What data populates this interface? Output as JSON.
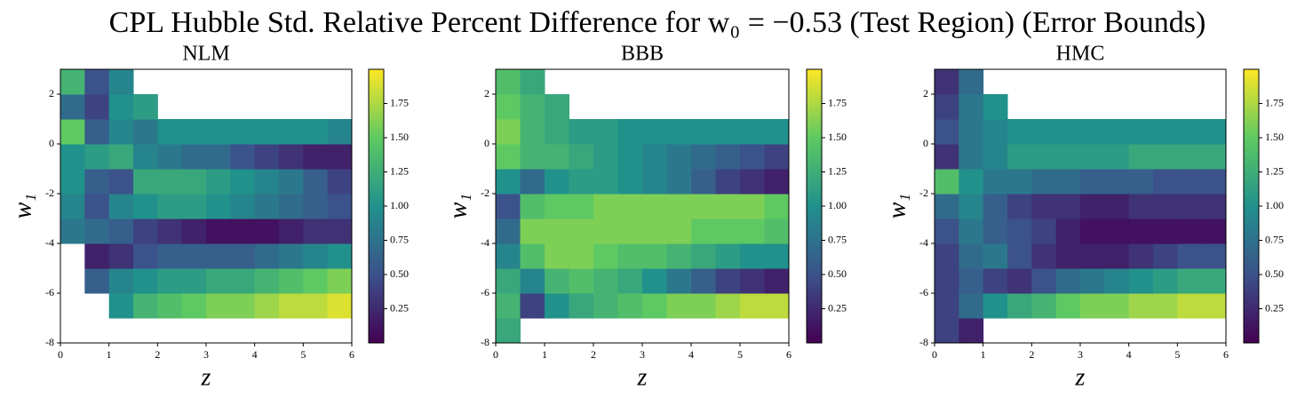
{
  "title": "CPL Hubble Std. Relative Percent Difference for w₀ = −0.53 (Test Region) (Error Bounds)",
  "chart_data": [
    {
      "type": "heatmap",
      "title": "NLM",
      "xlabel": "z",
      "ylabel": "w₁",
      "x_edges": [
        0,
        0.5,
        1,
        1.5,
        2,
        2.5,
        3,
        3.5,
        4,
        4.5,
        5,
        5.5,
        6
      ],
      "y_edges": [
        -8,
        -7,
        -6,
        -5,
        -4,
        -3,
        -2,
        -1,
        0,
        1,
        2,
        3
      ],
      "z": [
        [
          null,
          null,
          null,
          null,
          null,
          null,
          null,
          null,
          null,
          null,
          null,
          null
        ],
        [
          null,
          null,
          1.0,
          1.3,
          1.4,
          1.5,
          1.6,
          1.6,
          1.7,
          1.8,
          1.8,
          1.9
        ],
        [
          null,
          0.6,
          0.9,
          1.0,
          1.1,
          1.1,
          1.2,
          1.2,
          1.3,
          1.4,
          1.5,
          1.6
        ],
        [
          null,
          0.2,
          0.3,
          0.5,
          0.6,
          0.6,
          0.6,
          0.6,
          0.7,
          0.8,
          0.9,
          1.0
        ],
        [
          0.8,
          0.7,
          0.6,
          0.4,
          0.3,
          0.2,
          0.1,
          0.1,
          0.1,
          0.2,
          0.3,
          0.3
        ],
        [
          0.9,
          0.5,
          0.9,
          1.0,
          1.1,
          1.1,
          1.0,
          0.9,
          0.8,
          0.7,
          0.6,
          0.5
        ],
        [
          1.0,
          0.6,
          0.5,
          1.2,
          1.2,
          1.2,
          1.1,
          1.0,
          0.9,
          0.8,
          0.6,
          0.4
        ],
        [
          1.0,
          1.1,
          1.2,
          0.9,
          0.8,
          0.7,
          0.7,
          0.5,
          0.4,
          0.3,
          0.2,
          0.2
        ],
        [
          1.5,
          0.6,
          0.9,
          0.8,
          1.0,
          1.0,
          1.0,
          1.0,
          1.0,
          1.0,
          1.0,
          0.9
        ],
        [
          0.7,
          0.4,
          1.0,
          1.1,
          null,
          null,
          null,
          null,
          null,
          null,
          null,
          null
        ],
        [
          1.3,
          0.5,
          0.9,
          null,
          null,
          null,
          null,
          null,
          null,
          null,
          null,
          null
        ]
      ],
      "xlim": [
        0,
        6
      ],
      "ylim": [
        -8,
        3
      ],
      "xticks": [
        0,
        1,
        2,
        3,
        4,
        5,
        6
      ],
      "yticks": [
        -8,
        -6,
        -4,
        -2,
        0,
        2
      ],
      "clim": [
        0,
        2
      ],
      "cticks": [
        0.25,
        {
          "value": 0.5,
          "label": "0.50"
        },
        0.75,
        {
          "value": 1,
          "label": "1.00"
        },
        1.25,
        {
          "value": 1.5,
          "label": "1.50"
        },
        1.75
      ],
      "colormap": [
        "#440154",
        "#3b528b",
        "#21918c",
        "#5ec962",
        "#fde725"
      ]
    },
    {
      "type": "heatmap",
      "title": "BBB",
      "xlabel": "z",
      "ylabel": "w₁",
      "x_edges": [
        0,
        0.5,
        1,
        1.5,
        2,
        2.5,
        3,
        3.5,
        4,
        4.5,
        5,
        5.5,
        6
      ],
      "y_edges": [
        -8,
        -7,
        -6,
        -5,
        -4,
        -3,
        -2,
        -1,
        0,
        1,
        2,
        3
      ],
      "z": [
        [
          1.2,
          null,
          null,
          null,
          null,
          null,
          null,
          null,
          null,
          null,
          null,
          null
        ],
        [
          1.3,
          0.4,
          1.0,
          1.2,
          1.3,
          1.4,
          1.5,
          1.6,
          1.6,
          1.7,
          1.8,
          1.8
        ],
        [
          1.2,
          0.9,
          1.3,
          1.4,
          1.3,
          1.2,
          1.0,
          0.8,
          0.6,
          0.4,
          0.3,
          0.2
        ],
        [
          0.9,
          1.4,
          1.6,
          1.6,
          1.5,
          1.4,
          1.4,
          1.3,
          1.2,
          1.1,
          1.0,
          1.0
        ],
        [
          0.7,
          1.6,
          1.6,
          1.6,
          1.6,
          1.6,
          1.6,
          1.6,
          1.5,
          1.5,
          1.5,
          1.4
        ],
        [
          0.5,
          1.4,
          1.5,
          1.5,
          1.6,
          1.6,
          1.6,
          1.6,
          1.6,
          1.6,
          1.6,
          1.5
        ],
        [
          1.0,
          0.7,
          1.0,
          1.1,
          1.1,
          1.0,
          0.9,
          0.8,
          0.6,
          0.4,
          0.3,
          0.2
        ],
        [
          1.5,
          1.3,
          1.3,
          1.2,
          1.1,
          1.0,
          0.9,
          0.8,
          0.7,
          0.6,
          0.5,
          0.4
        ],
        [
          1.6,
          1.3,
          1.2,
          1.1,
          1.1,
          1.0,
          1.0,
          1.0,
          1.0,
          1.0,
          1.0,
          1.0
        ],
        [
          1.5,
          1.3,
          1.2,
          null,
          null,
          null,
          null,
          null,
          null,
          null,
          null,
          null
        ],
        [
          1.4,
          1.2,
          null,
          null,
          null,
          null,
          null,
          null,
          null,
          null,
          null,
          null
        ]
      ],
      "xlim": [
        0,
        6
      ],
      "ylim": [
        -8,
        3
      ],
      "xticks": [
        0,
        1,
        2,
        3,
        4,
        5,
        6
      ],
      "yticks": [
        -8,
        -6,
        -4,
        -2,
        0,
        2
      ],
      "clim": [
        0,
        2
      ],
      "cticks": [
        0.25,
        {
          "value": 0.5,
          "label": "0.50"
        },
        0.75,
        {
          "value": 1,
          "label": "1.00"
        },
        1.25,
        {
          "value": 1.5,
          "label": "1.50"
        },
        1.75
      ],
      "colormap": [
        "#440154",
        "#3b528b",
        "#21918c",
        "#5ec962",
        "#fde725"
      ]
    },
    {
      "type": "heatmap",
      "title": "HMC",
      "xlabel": "z",
      "ylabel": "w₁",
      "x_edges": [
        0,
        0.5,
        1,
        1.5,
        2,
        2.5,
        3,
        3.5,
        4,
        4.5,
        5,
        5.5,
        6
      ],
      "y_edges": [
        -8,
        -7,
        -6,
        -5,
        -4,
        -3,
        -2,
        -1,
        0,
        1,
        2,
        3
      ],
      "z": [
        [
          0.4,
          0.2,
          null,
          null,
          null,
          null,
          null,
          null,
          null,
          null,
          null,
          null
        ],
        [
          0.4,
          0.7,
          1.0,
          1.2,
          1.3,
          1.5,
          1.6,
          1.6,
          1.7,
          1.7,
          1.8,
          1.8
        ],
        [
          0.4,
          0.6,
          0.4,
          0.3,
          0.5,
          0.7,
          0.8,
          0.9,
          1.0,
          1.1,
          1.2,
          1.2
        ],
        [
          0.4,
          0.7,
          0.8,
          0.5,
          0.3,
          0.2,
          0.2,
          0.2,
          0.3,
          0.4,
          0.5,
          0.5
        ],
        [
          0.5,
          0.8,
          0.6,
          0.5,
          0.4,
          0.2,
          0.1,
          0.1,
          0.1,
          0.1,
          0.1,
          0.1
        ],
        [
          0.7,
          0.9,
          0.6,
          0.4,
          0.3,
          0.3,
          0.2,
          0.2,
          0.3,
          0.3,
          0.3,
          0.3
        ],
        [
          1.4,
          1.0,
          0.8,
          0.8,
          0.7,
          0.7,
          0.6,
          0.6,
          0.6,
          0.5,
          0.5,
          0.5
        ],
        [
          0.3,
          0.8,
          0.9,
          1.1,
          1.1,
          1.1,
          1.1,
          1.1,
          1.2,
          1.2,
          1.2,
          1.2
        ],
        [
          0.5,
          0.8,
          0.9,
          1.0,
          1.0,
          1.0,
          1.0,
          1.0,
          1.0,
          1.0,
          1.0,
          1.0
        ],
        [
          0.4,
          0.8,
          1.0,
          null,
          null,
          null,
          null,
          null,
          null,
          null,
          null,
          null
        ],
        [
          0.3,
          0.7,
          null,
          null,
          null,
          null,
          null,
          null,
          null,
          null,
          null,
          null
        ]
      ],
      "xlim": [
        0,
        6
      ],
      "ylim": [
        -8,
        3
      ],
      "xticks": [
        0,
        1,
        2,
        3,
        4,
        5,
        6
      ],
      "yticks": [
        -8,
        -6,
        -4,
        -2,
        0,
        2
      ],
      "clim": [
        0,
        2
      ],
      "cticks": [
        0.25,
        {
          "value": 0.5,
          "label": "0.50"
        },
        0.75,
        {
          "value": 1,
          "label": "1.00"
        },
        1.25,
        {
          "value": 1.5,
          "label": "1.50"
        },
        1.75
      ],
      "colormap": [
        "#440154",
        "#3b528b",
        "#21918c",
        "#5ec962",
        "#fde725"
      ]
    }
  ]
}
